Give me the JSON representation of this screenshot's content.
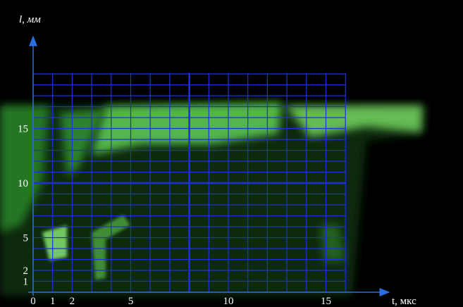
{
  "axes": {
    "y_label": "l, мм",
    "x_label": "t, мкс",
    "x_ticks": [
      "0",
      "1",
      "2",
      "5",
      "10",
      "15"
    ],
    "y_ticks": [
      "1",
      "2",
      "5",
      "10",
      "15"
    ]
  }
}
